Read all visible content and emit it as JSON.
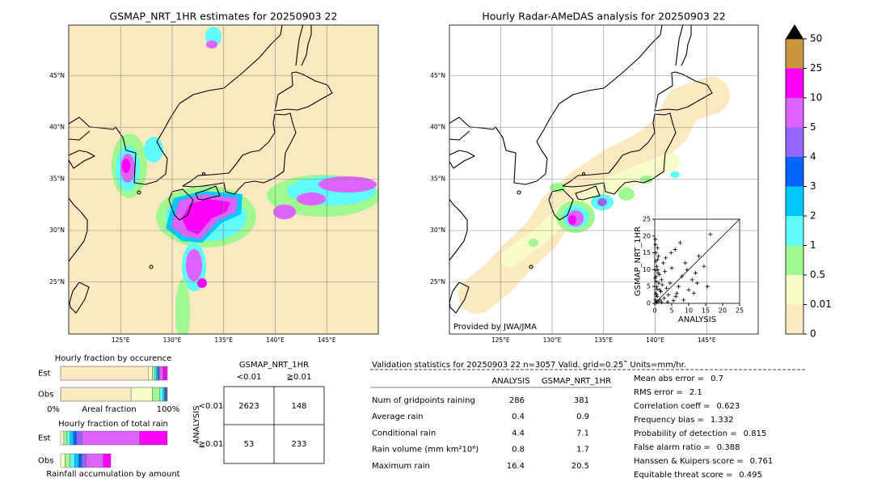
{
  "maps": [
    {
      "title": "GSMAP_NRT_1HR estimates for 20250903 22",
      "lat_ticks": [
        {
          "value": 25,
          "label": "25°N"
        },
        {
          "value": 30,
          "label": "30°N"
        },
        {
          "value": 35,
          "label": "35°N"
        },
        {
          "value": 40,
          "label": "40°N"
        },
        {
          "value": 45,
          "label": "45°N"
        }
      ],
      "lon_ticks": [
        {
          "value": 125,
          "label": "125°E"
        },
        {
          "value": 130,
          "label": "130°E"
        },
        {
          "value": 135,
          "label": "135°E"
        },
        {
          "value": 140,
          "label": "140°E"
        },
        {
          "value": 145,
          "label": "145°E"
        }
      ]
    },
    {
      "title": "Hourly Radar-AMeDAS analysis for 20250903 22",
      "lat_ticks": [
        {
          "value": 25,
          "label": "25°N"
        },
        {
          "value": 30,
          "label": "30°N"
        },
        {
          "value": 35,
          "label": "35°N"
        },
        {
          "value": 40,
          "label": "40°N"
        },
        {
          "value": 45,
          "label": "45°N"
        }
      ],
      "lon_ticks": [
        {
          "value": 125,
          "label": "125°E"
        },
        {
          "value": 130,
          "label": "130°E"
        },
        {
          "value": 135,
          "label": "135°E"
        },
        {
          "value": 140,
          "label": "140°E"
        },
        {
          "value": 145,
          "label": "145°E"
        }
      ],
      "credit": "Provided by JWA/JMA"
    }
  ],
  "colorbar": {
    "ticks": [
      0,
      0.01,
      0.5,
      1,
      2,
      3,
      4,
      5,
      10,
      25,
      50
    ],
    "colors": [
      "#fde9c0",
      "#f8fcc8",
      "#a0f890",
      "#60fcfc",
      "#00c8fc",
      "#0064fc",
      "#9664fc",
      "#dc64fc",
      "#fc00fc",
      "#c8963c"
    ],
    "extend_color": "#000000"
  },
  "scatter": {
    "xlabel": "ANALYSIS",
    "ylabel": "GSMAP_NRT_1HR",
    "xlim": [
      0,
      25
    ],
    "ylim": [
      0,
      25
    ],
    "xticks": [
      0,
      5,
      10,
      15,
      20,
      25
    ],
    "yticks": [
      0,
      5,
      10,
      15,
      20,
      25
    ],
    "x": [
      0.2,
      0.3,
      0.5,
      0.4,
      0.6,
      0.8,
      1.0,
      0.3,
      0.2,
      1.2,
      1.5,
      0.7,
      0.9,
      2.0,
      2.5,
      1.8,
      3.0,
      0.4,
      0.6,
      1.1,
      0.5,
      2.2,
      3.5,
      4.0,
      0.3,
      1.4,
      2.8,
      5.0,
      6.0,
      7.5,
      8.0,
      9.0,
      10.0,
      11.0,
      12.0,
      13.0,
      14.5,
      15.5,
      16.4,
      0.2,
      0.8,
      1.6,
      4.5,
      6.5,
      8.5,
      0.1,
      0.5,
      3.2,
      5.5,
      7.0,
      2.0,
      1.0,
      0.3,
      9.5,
      12.5,
      0.7,
      4.8,
      6.2,
      11.5,
      3.8
    ],
    "y": [
      1.0,
      3.0,
      5.0,
      8.0,
      11.0,
      13.0,
      9.0,
      15.0,
      17.5,
      6.0,
      4.0,
      2.0,
      10.0,
      7.0,
      12.0,
      3.5,
      9.5,
      6.5,
      0.5,
      14.0,
      0.2,
      5.5,
      4.5,
      2.5,
      12.5,
      8.5,
      1.5,
      10.5,
      16.0,
      18.0,
      8.0,
      12.0,
      4.0,
      7.0,
      9.0,
      14.0,
      11.0,
      5.0,
      20.5,
      19.0,
      16.5,
      1.0,
      6.0,
      3.0,
      1.0,
      7.5,
      2.5,
      13.5,
      0.8,
      5.0,
      0.3,
      0.6,
      9.8,
      10.0,
      6.0,
      4.2,
      15.0,
      2.0,
      3.0,
      0.4
    ]
  },
  "occurrence": {
    "title": "Hourly fraction by occurence",
    "rows": [
      {
        "name": "Est",
        "values": [
          82,
          4,
          2,
          1.5,
          1.5,
          1,
          1,
          3,
          4
        ]
      },
      {
        "name": "Obs",
        "values": [
          66,
          20,
          7,
          3,
          1.5,
          1,
          0.5,
          0.5,
          0.5
        ]
      }
    ],
    "x_start": "0%",
    "x_label": "Areal fraction",
    "x_end": "100%"
  },
  "total_rain": {
    "title": "Hourly fraction of total rain",
    "rows": [
      {
        "name": "Est",
        "values": [
          0,
          3,
          3,
          3,
          3,
          3,
          5,
          54,
          26
        ]
      },
      {
        "name": "Obs",
        "values": [
          0,
          4,
          5,
          4,
          4,
          3,
          4,
          16,
          7
        ]
      }
    ],
    "caption": "Rainfall accumulation by amount"
  },
  "contingency": {
    "col_title": "GSMAP_NRT_1HR",
    "col_labels": [
      "<0.01",
      "≧0.01"
    ],
    "row_title": "ANALYSIS",
    "row_labels": [
      "<0.01",
      "≧0.01"
    ],
    "cells": [
      [
        2623,
        148
      ],
      [
        53,
        233
      ]
    ]
  },
  "stats": {
    "title": "Validation statistics for 20250903 22  n=3057 Valid. grid=0.25˚ Units=mm/hr.",
    "columns": [
      "ANALYSIS",
      "GSMAP_NRT_1HR"
    ],
    "rows": [
      {
        "label": "Num of gridpoints raining",
        "values": [
          286,
          381
        ]
      },
      {
        "label": "Average rain",
        "values": [
          0.4,
          0.9
        ]
      },
      {
        "label": "Conditional rain",
        "values": [
          4.4,
          7.1
        ]
      },
      {
        "label": "Rain volume (mm km²10⁶)",
        "values": [
          0.8,
          1.7
        ]
      },
      {
        "label": "Maximum rain",
        "values": [
          16.4,
          20.5
        ]
      }
    ]
  },
  "scores": [
    {
      "label": "Mean abs error =",
      "value": 0.7
    },
    {
      "label": "RMS error =",
      "value": 2.1
    },
    {
      "label": "Correlation coeff =",
      "value": 0.623
    },
    {
      "label": "Frequency bias =",
      "value": 1.332
    },
    {
      "label": "Probability of detection =",
      "value": 0.815
    },
    {
      "label": "False alarm ratio =",
      "value": 0.388
    },
    {
      "label": "Hanssen & Kuipers score =",
      "value": 0.761
    },
    {
      "label": "Equitable threat score =",
      "value": 0.495
    }
  ]
}
